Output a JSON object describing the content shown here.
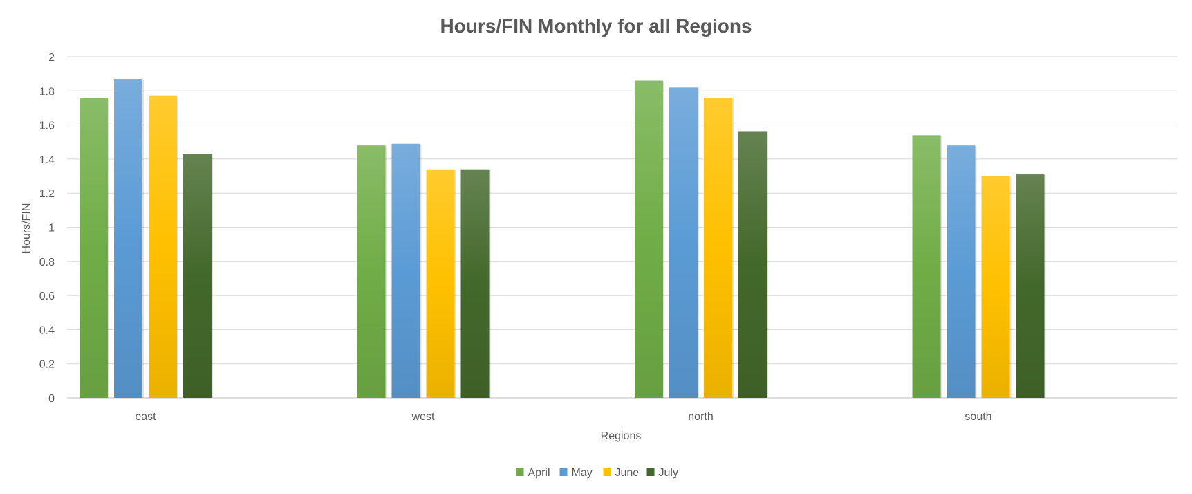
{
  "chart_data": {
    "type": "bar",
    "title": "Hours/FIN Monthly for all Regions",
    "xlabel": "Regions",
    "ylabel": "Hours/FIN",
    "categories": [
      "east",
      "west",
      "north",
      "south"
    ],
    "y_ticks": [
      "0",
      "0.2",
      "0.4",
      "0.6",
      "0.8",
      "1",
      "1.2",
      "1.4",
      "1.6",
      "1.8",
      "2"
    ],
    "ylim": [
      0,
      2
    ],
    "grid": true,
    "legend_position": "bottom",
    "series": [
      {
        "name": "April",
        "values": [
          1.76,
          1.48,
          1.86,
          1.54
        ],
        "color": "#70AD47"
      },
      {
        "name": "May",
        "values": [
          1.87,
          1.49,
          1.82,
          1.48
        ],
        "color": "#5B9BD5"
      },
      {
        "name": "June",
        "values": [
          1.77,
          1.34,
          1.76,
          1.3
        ],
        "color": "#FFC000"
      },
      {
        "name": "July",
        "values": [
          1.43,
          1.34,
          1.56,
          1.31
        ],
        "color": "#43682B"
      }
    ]
  }
}
